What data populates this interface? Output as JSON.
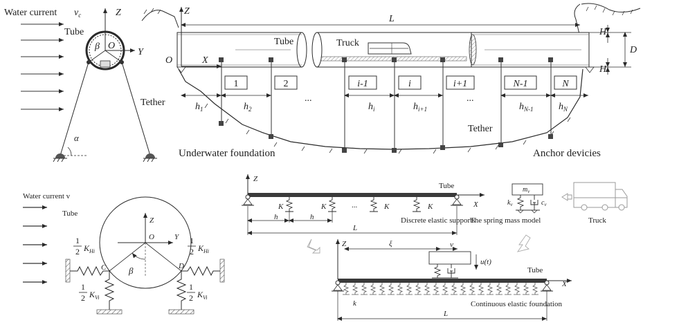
{
  "top_cross_section": {
    "water_current": "Water current",
    "water_current_sym": "v",
    "water_current_sub": "c",
    "tube": "Tube",
    "tether": "Tether",
    "axis_z": "Z",
    "axis_y": "Y",
    "origin": "O",
    "beta": "β",
    "alpha": "α"
  },
  "top_profile": {
    "length": "L",
    "axis_z": "Z",
    "axis_x": "X",
    "origin": "O",
    "tube": "Tube",
    "truck": "Truck",
    "tether": "Tether",
    "H_top": "H",
    "H_bottom": "H",
    "D": "D",
    "segments": [
      "1",
      "2",
      "i-1",
      "i",
      "i+1",
      "N-1",
      "N"
    ],
    "ellipsis": "...",
    "heights": [
      {
        "sym": "h",
        "sub": "1"
      },
      {
        "sym": "h",
        "sub": "2"
      },
      {
        "sym": "h",
        "sub": "i"
      },
      {
        "sym": "h",
        "sub": "i+1"
      },
      {
        "sym": "h",
        "sub": "N-1"
      },
      {
        "sym": "h",
        "sub": "N"
      }
    ],
    "underwater_foundation": "Underwater foundation",
    "anchor_devices": "Anchor devicies"
  },
  "bottom_cross_section": {
    "water_current": "Water current v",
    "tube": "Tube",
    "axis_z": "Z",
    "axis_y": "Y",
    "origin": "O",
    "point_c": "C",
    "point_d": "D",
    "beta": "β",
    "half": "1",
    "half_den": "2",
    "KH": "K",
    "KH_sub": "Hi",
    "KV": "K",
    "KV_sub": "Vi"
  },
  "discrete_model": {
    "axis_z": "Z",
    "axis_x": "X",
    "tube": "Tube",
    "spring": "K",
    "ellipsis": "...",
    "spacing": "h",
    "length": "L",
    "caption": "Discrete elastic supports"
  },
  "spring_mass": {
    "mass": "m",
    "mass_sub": "v",
    "k": "k",
    "k_sub": "v",
    "c": "c",
    "c_sub": "v",
    "caption": "The spring mass model",
    "truck": "Truck"
  },
  "continuous_model": {
    "axis_z": "Z",
    "axis_x": "X",
    "xi": "ξ",
    "v": "v",
    "u": "u(t)",
    "tube": "Tube",
    "k": "k",
    "length": "L",
    "caption": "Continuous elastic foundation"
  }
}
